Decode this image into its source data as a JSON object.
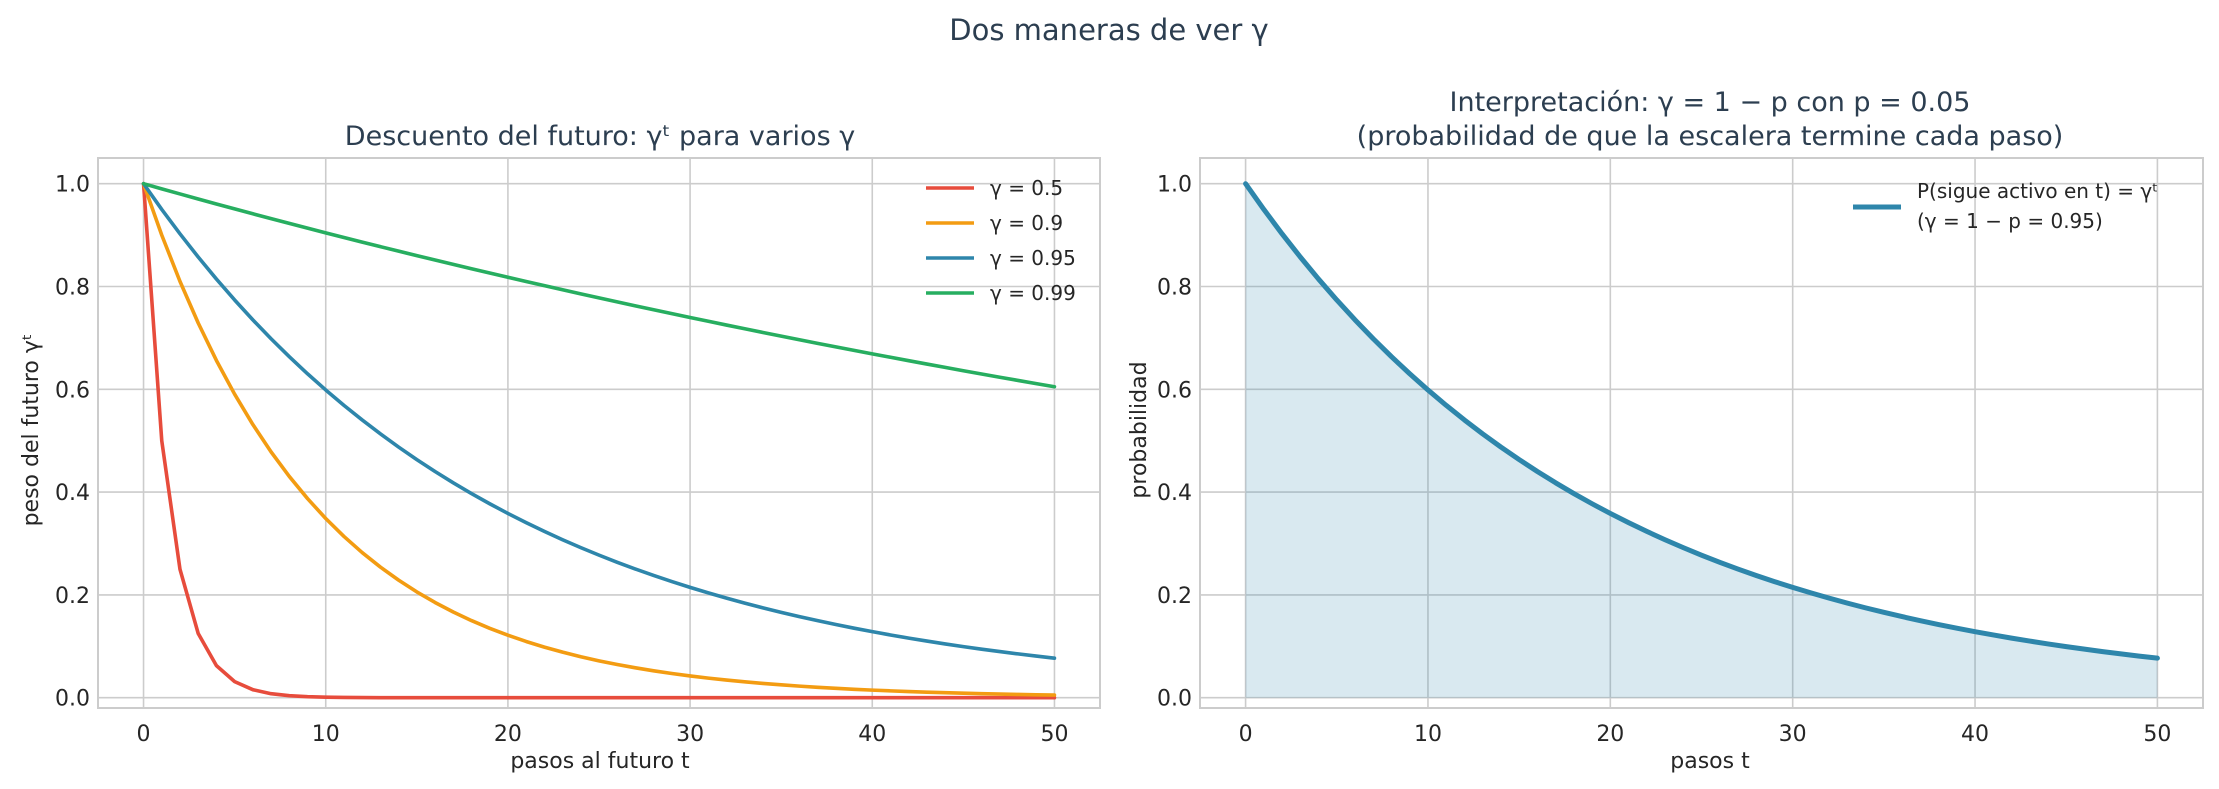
{
  "figure": {
    "suptitle": "Dos maneras de ver γ"
  },
  "chart_data": [
    {
      "type": "line",
      "title": "Descuento del futuro: γᵗ para varios γ",
      "xlabel": "pasos al futuro t",
      "ylabel": "peso del futuro  γᵗ",
      "xlim": [
        -2.5,
        52.5
      ],
      "ylim": [
        -0.02,
        1.05
      ],
      "xticks": [
        0,
        10,
        20,
        30,
        40,
        50
      ],
      "yticks": [
        0.0,
        0.2,
        0.4,
        0.6,
        0.8,
        1.0
      ],
      "xtick_labels": [
        "0",
        "10",
        "20",
        "30",
        "40",
        "50"
      ],
      "ytick_labels": [
        "0.0",
        "0.2",
        "0.4",
        "0.6",
        "0.8",
        "1.0"
      ],
      "grid": true,
      "legend_position": "top-right",
      "x": [
        0,
        1,
        2,
        3,
        4,
        5,
        6,
        7,
        8,
        9,
        10,
        11,
        12,
        13,
        14,
        15,
        16,
        17,
        18,
        19,
        20,
        21,
        22,
        23,
        24,
        25,
        26,
        27,
        28,
        29,
        30,
        31,
        32,
        33,
        34,
        35,
        36,
        37,
        38,
        39,
        40,
        41,
        42,
        43,
        44,
        45,
        46,
        47,
        48,
        49,
        50
      ],
      "series": [
        {
          "name": "γ = 0.5",
          "gamma": 0.5,
          "color": "#e74c3c"
        },
        {
          "name": "γ = 0.9",
          "gamma": 0.9,
          "color": "#f39c12"
        },
        {
          "name": "γ = 0.95",
          "gamma": 0.95,
          "color": "#2e86ab"
        },
        {
          "name": "γ = 0.99",
          "gamma": 0.99,
          "color": "#27ae60"
        }
      ]
    },
    {
      "type": "area",
      "title_line1": "Interpretación: γ = 1 − p con p = 0.05",
      "title_line2": "(probabilidad de que la escalera termine cada paso)",
      "xlabel": "pasos t",
      "ylabel": "probabilidad",
      "xlim": [
        -2.5,
        52.5
      ],
      "ylim": [
        -0.02,
        1.05
      ],
      "xticks": [
        0,
        10,
        20,
        30,
        40,
        50
      ],
      "yticks": [
        0.0,
        0.2,
        0.4,
        0.6,
        0.8,
        1.0
      ],
      "xtick_labels": [
        "0",
        "10",
        "20",
        "30",
        "40",
        "50"
      ],
      "ytick_labels": [
        "0.0",
        "0.2",
        "0.4",
        "0.6",
        "0.8",
        "1.0"
      ],
      "grid": true,
      "legend_position": "top-right",
      "x": [
        0,
        1,
        2,
        3,
        4,
        5,
        6,
        7,
        8,
        9,
        10,
        11,
        12,
        13,
        14,
        15,
        16,
        17,
        18,
        19,
        20,
        21,
        22,
        23,
        24,
        25,
        26,
        27,
        28,
        29,
        30,
        31,
        32,
        33,
        34,
        35,
        36,
        37,
        38,
        39,
        40,
        41,
        42,
        43,
        44,
        45,
        46,
        47,
        48,
        49,
        50
      ],
      "series": [
        {
          "name_line1": "P(sigue activo en t) = γᵗ",
          "name_line2": "(γ = 1 − p = 0.95)",
          "gamma": 0.95,
          "color": "#2e86ab",
          "fill_color": "#2e86ab"
        }
      ]
    }
  ]
}
